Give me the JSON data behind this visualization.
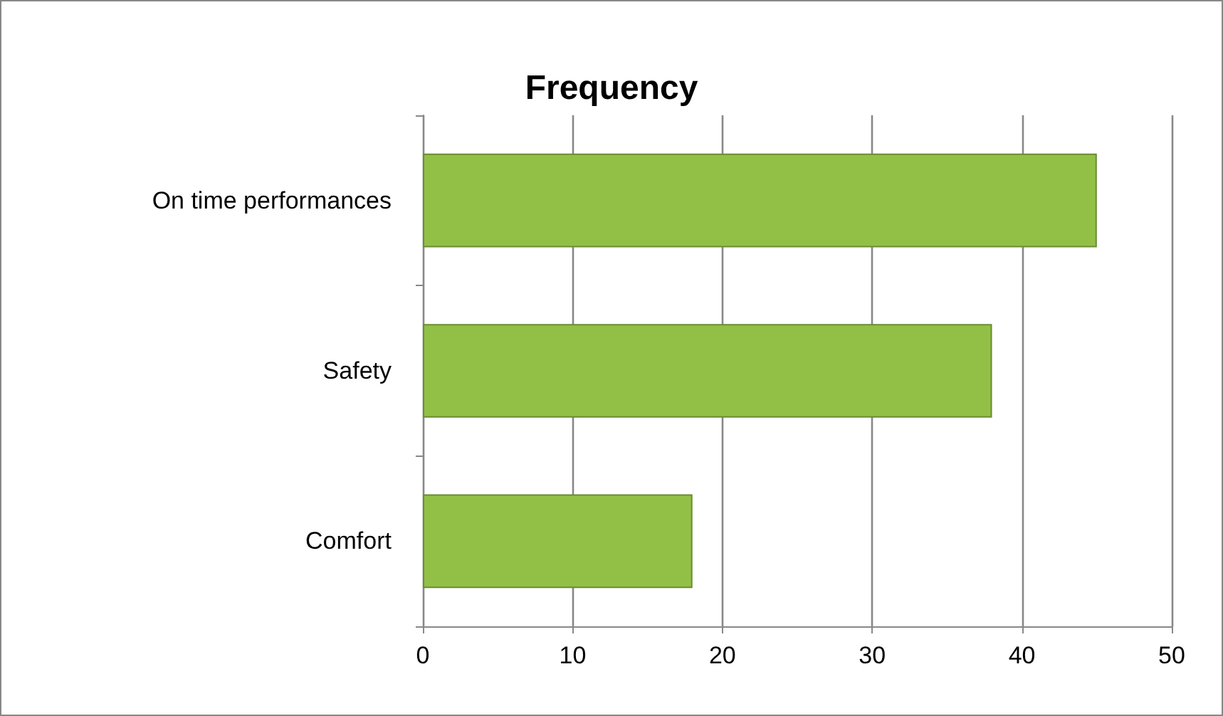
{
  "chart_data": {
    "type": "bar",
    "orientation": "horizontal",
    "title": "Frequency",
    "categories": [
      "On time performances",
      "Safety",
      "Comfort"
    ],
    "values": [
      45,
      38,
      18
    ],
    "color": "#92c047",
    "xlim": [
      0,
      50
    ],
    "xticks": [
      0,
      10,
      20,
      30,
      40,
      50
    ],
    "grid": "x"
  }
}
